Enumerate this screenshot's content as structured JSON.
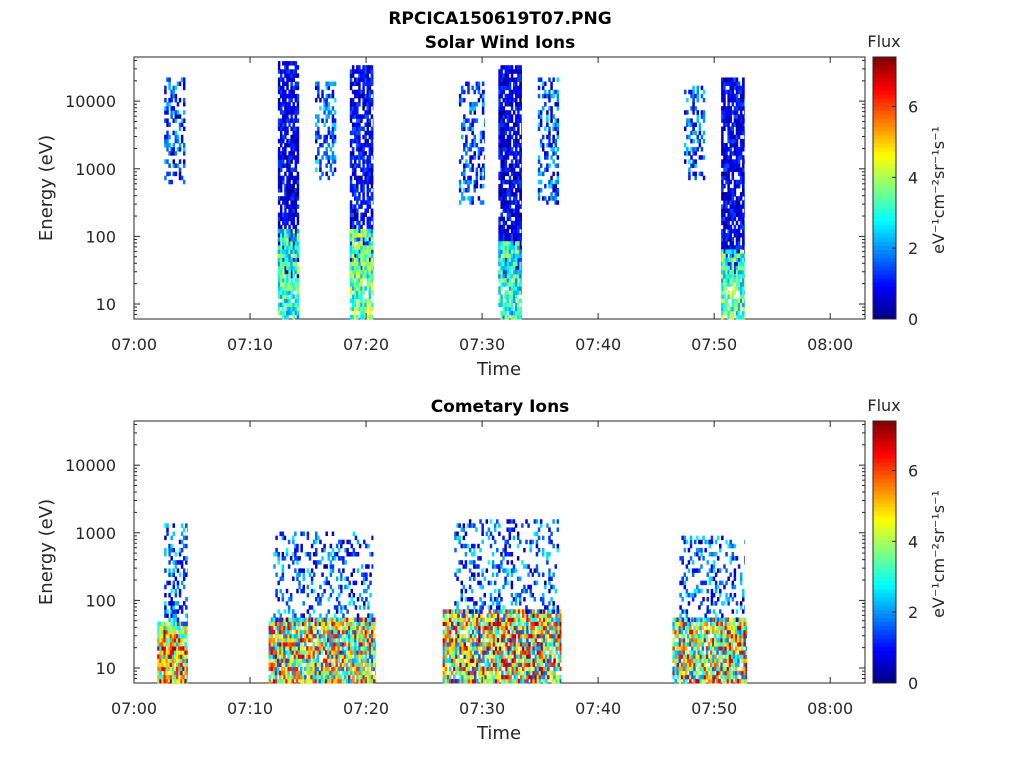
{
  "figure_title": "RPCICA150619T07.PNG",
  "chart_data": [
    {
      "type": "heatmap",
      "title": "Solar Wind Ions",
      "xlabel": "Time",
      "ylabel": "Energy (eV)",
      "x_ticks": [
        "07:00",
        "07:10",
        "07:20",
        "07:30",
        "07:40",
        "07:50",
        "08:00"
      ],
      "x_range_minutes": [
        0,
        63
      ],
      "y_scale": "log",
      "y_ticks": [
        "10",
        "100",
        "1000",
        "10000"
      ],
      "y_range_eV": [
        6,
        45000
      ],
      "colorbar": {
        "label": "Flux",
        "units": "eV⁻¹cm⁻²sr⁻¹s⁻¹",
        "ticks": [
          "0",
          "2",
          "4",
          "6"
        ],
        "range": [
          0,
          7.4
        ],
        "colormap": "jet"
      },
      "bursts": [
        {
          "start_min": 2.6,
          "end_min": 4.4,
          "emin": 600,
          "emax": 20000,
          "vmin": 0.3,
          "vmax": 2.6,
          "density": 0.45
        },
        {
          "start_min": 12.4,
          "end_min": 14.2,
          "emin": 25,
          "emax": 35000,
          "vmin": 0.1,
          "vmax": 1.5,
          "density": 0.78
        },
        {
          "start_min": 12.4,
          "end_min": 14.2,
          "emin": 6,
          "emax": 120,
          "vmin": 1.8,
          "vmax": 4.2,
          "density": 0.8
        },
        {
          "start_min": 15.6,
          "end_min": 17.4,
          "emin": 700,
          "emax": 18000,
          "vmin": 0.3,
          "vmax": 2.8,
          "density": 0.45
        },
        {
          "start_min": 18.6,
          "end_min": 20.6,
          "emin": 25,
          "emax": 30000,
          "vmin": 0.1,
          "vmax": 1.6,
          "density": 0.75
        },
        {
          "start_min": 18.6,
          "end_min": 20.6,
          "emin": 6,
          "emax": 120,
          "vmin": 2.2,
          "vmax": 4.8,
          "density": 0.8
        },
        {
          "start_min": 28.0,
          "end_min": 30.2,
          "emin": 300,
          "emax": 18000,
          "vmin": 0.3,
          "vmax": 2.5,
          "density": 0.35
        },
        {
          "start_min": 31.4,
          "end_min": 33.4,
          "emin": 25,
          "emax": 30000,
          "vmin": 0.1,
          "vmax": 1.5,
          "density": 0.8
        },
        {
          "start_min": 31.4,
          "end_min": 33.4,
          "emin": 6,
          "emax": 80,
          "vmin": 1.8,
          "vmax": 4.0,
          "density": 0.75
        },
        {
          "start_min": 34.8,
          "end_min": 36.6,
          "emin": 300,
          "emax": 20000,
          "vmin": 0.3,
          "vmax": 2.6,
          "density": 0.4
        },
        {
          "start_min": 47.4,
          "end_min": 49.2,
          "emin": 700,
          "emax": 15000,
          "vmin": 0.3,
          "vmax": 2.6,
          "density": 0.4
        },
        {
          "start_min": 50.6,
          "end_min": 52.6,
          "emin": 25,
          "emax": 20000,
          "vmin": 0.1,
          "vmax": 1.6,
          "density": 0.8
        },
        {
          "start_min": 50.6,
          "end_min": 52.6,
          "emin": 6,
          "emax": 60,
          "vmin": 2.0,
          "vmax": 4.5,
          "density": 0.8
        }
      ]
    },
    {
      "type": "heatmap",
      "title": "Cometary Ions",
      "xlabel": "Time",
      "ylabel": "Energy (eV)",
      "x_ticks": [
        "07:00",
        "07:10",
        "07:20",
        "07:30",
        "07:40",
        "07:50",
        "08:00"
      ],
      "x_range_minutes": [
        0,
        63
      ],
      "y_scale": "log",
      "y_ticks": [
        "10",
        "100",
        "1000",
        "10000"
      ],
      "y_range_eV": [
        6,
        45000
      ],
      "colorbar": {
        "label": "Flux",
        "units": "eV⁻¹cm⁻²sr⁻¹s⁻¹",
        "ticks": [
          "0",
          "2",
          "4",
          "6"
        ],
        "range": [
          0,
          7.4
        ],
        "colormap": "jet"
      },
      "bursts": [
        {
          "start_min": 2.0,
          "end_min": 4.6,
          "emin": 6,
          "emax": 45,
          "vmin": 2.5,
          "vmax": 7.2,
          "density": 0.95
        },
        {
          "start_min": 2.6,
          "end_min": 4.6,
          "emin": 45,
          "emax": 1200,
          "vmin": 0.3,
          "vmax": 2.8,
          "density": 0.35
        },
        {
          "start_min": 11.6,
          "end_min": 20.8,
          "emin": 6,
          "emax": 50,
          "vmin": 1.5,
          "vmax": 7.0,
          "density": 0.85
        },
        {
          "start_min": 12.0,
          "end_min": 20.6,
          "emin": 50,
          "emax": 1000,
          "vmin": 0.3,
          "vmax": 2.8,
          "density": 0.25
        },
        {
          "start_min": 26.6,
          "end_min": 36.8,
          "emin": 6,
          "emax": 70,
          "vmin": 1.5,
          "vmax": 7.3,
          "density": 0.85
        },
        {
          "start_min": 27.6,
          "end_min": 36.6,
          "emin": 70,
          "emax": 1500,
          "vmin": 0.3,
          "vmax": 2.8,
          "density": 0.25
        },
        {
          "start_min": 46.4,
          "end_min": 52.8,
          "emin": 6,
          "emax": 50,
          "vmin": 1.5,
          "vmax": 7.0,
          "density": 0.85
        },
        {
          "start_min": 47.0,
          "end_min": 52.6,
          "emin": 50,
          "emax": 900,
          "vmin": 0.3,
          "vmax": 2.8,
          "density": 0.25
        }
      ]
    }
  ]
}
